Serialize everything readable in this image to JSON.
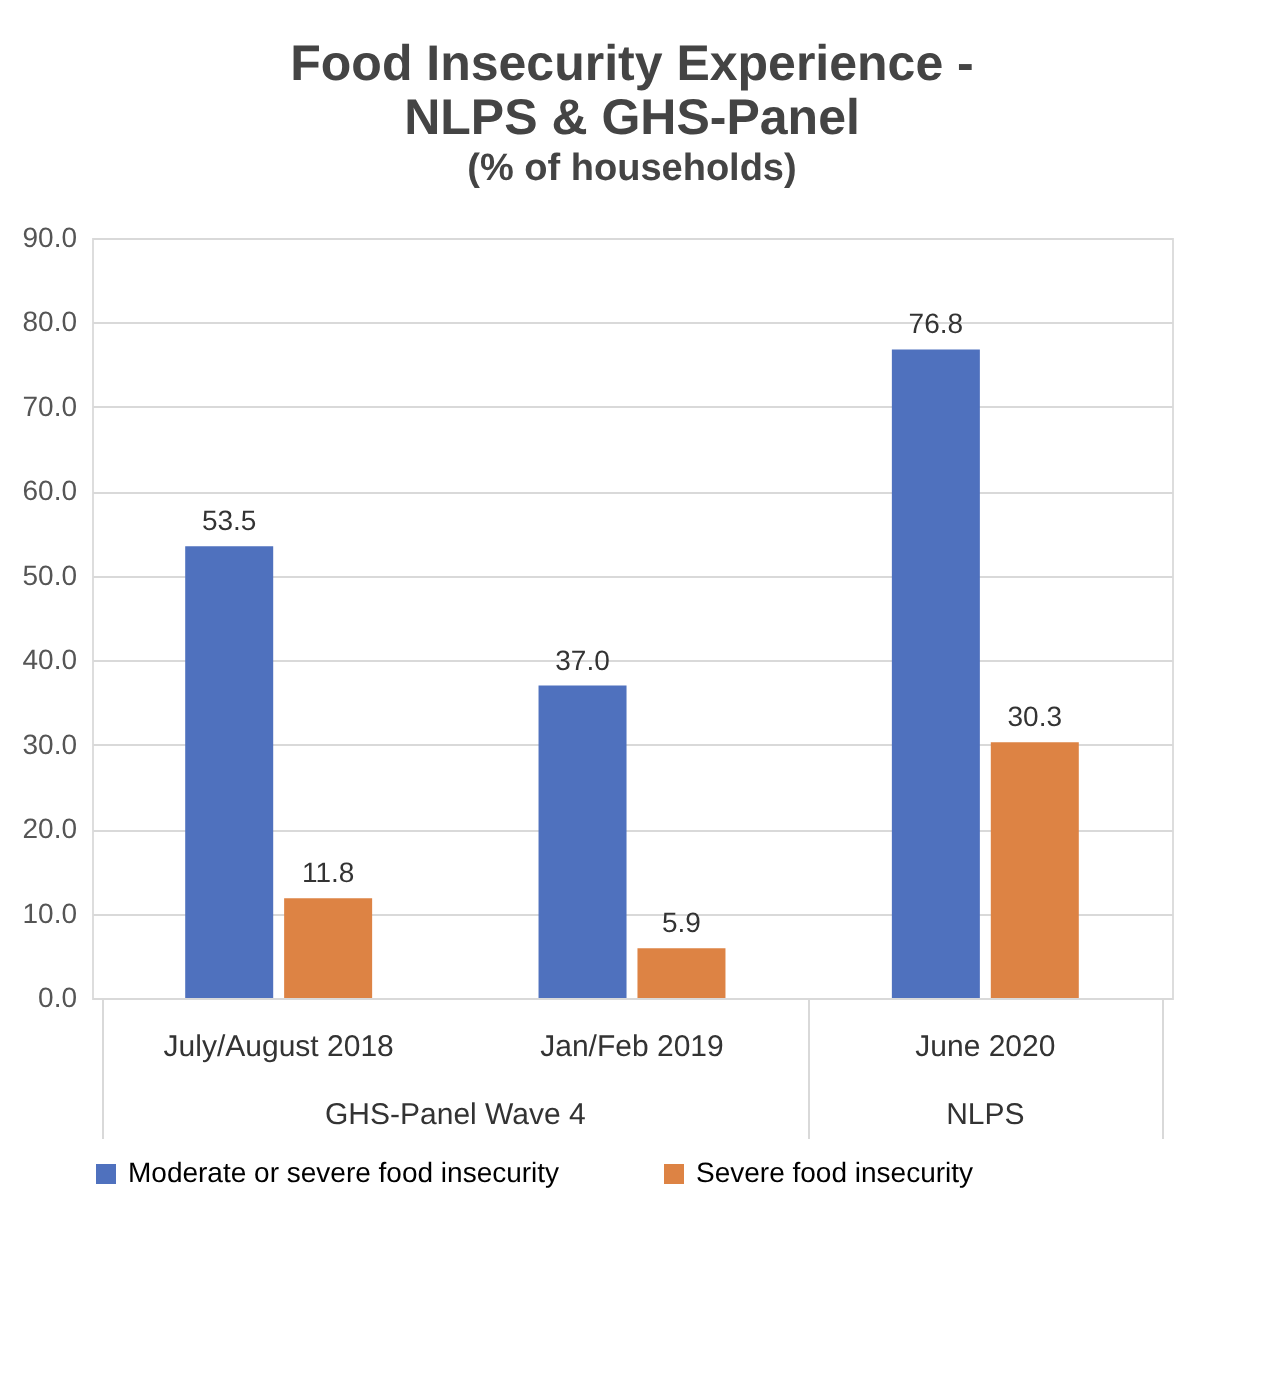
{
  "chart_data": {
    "type": "bar",
    "title": "Food Insecurity Experience -\nNLPS & GHS-Panel",
    "subtitle": "(% of households)",
    "categories": [
      "July/August 2018",
      "Jan/Feb 2019",
      "June 2020"
    ],
    "series": [
      {
        "name": "Moderate or severe food insecurity",
        "color": "#4f71be",
        "values": [
          53.5,
          37.0,
          76.8
        ],
        "value_labels": [
          "53.5",
          "37.0",
          "76.8"
        ]
      },
      {
        "name": "Severe food insecurity",
        "color": "#dd8344",
        "values": [
          11.8,
          5.9,
          30.3
        ],
        "value_labels": [
          "11.8",
          "5.9",
          "30.3"
        ]
      }
    ],
    "annotations": [
      "GHS-Panel Wave 4",
      "NLPS"
    ],
    "ylim": [
      0,
      90
    ],
    "yticks": [
      {
        "value": 0,
        "label": "0.0"
      },
      {
        "value": 10,
        "label": "10.0"
      },
      {
        "value": 20,
        "label": "20.0"
      },
      {
        "value": 30,
        "label": "30.0"
      },
      {
        "value": 40,
        "label": "40.0"
      },
      {
        "value": 50,
        "label": "50.0"
      },
      {
        "value": 60,
        "label": "60.0"
      },
      {
        "value": 70,
        "label": "70.0"
      },
      {
        "value": 80,
        "label": "80.0"
      },
      {
        "value": 90,
        "label": "90.0"
      }
    ],
    "grid": "y",
    "legend": "bottom"
  }
}
